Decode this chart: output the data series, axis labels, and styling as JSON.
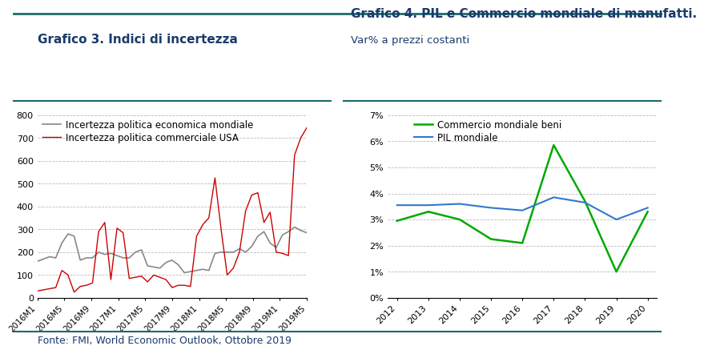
{
  "title1": "Grafico 3. Indici di incertezza",
  "title2": "Grafico 4. PIL e Commercio mondiale di manufatti.",
  "subtitle2": "Var% a prezzi costanti",
  "footer": "Fonte: FMI, World Economic Outlook, Ottobre 2019",
  "chart1": {
    "legend1": "Incertezza politica economica mondiale",
    "legend2": "Incertezza politica commerciale USA",
    "color_grey": "#888888",
    "color_red": "#cc0000",
    "xticks": [
      "2016M1",
      "2016M5",
      "2016M9",
      "2017M1",
      "2017M5",
      "2017M9",
      "2018M1",
      "2018M5",
      "2018M9",
      "2019M1",
      "2019M5"
    ],
    "ylim": [
      0,
      800
    ],
    "yticks": [
      0,
      100,
      200,
      300,
      400,
      500,
      600,
      700,
      800
    ],
    "grey_data": [
      160,
      170,
      180,
      175,
      240,
      280,
      270,
      165,
      175,
      175,
      200,
      190,
      195,
      185,
      175,
      175,
      200,
      210,
      140,
      135,
      130,
      155,
      165,
      145,
      110,
      115,
      120,
      125,
      120,
      195,
      200,
      200,
      200,
      215,
      200,
      225,
      270,
      290,
      240,
      220,
      275,
      290,
      310,
      295,
      285
    ],
    "red_data": [
      30,
      35,
      40,
      45,
      120,
      100,
      25,
      50,
      55,
      65,
      290,
      330,
      80,
      305,
      285,
      85,
      90,
      95,
      70,
      100,
      90,
      80,
      45,
      55,
      55,
      50,
      270,
      320,
      350,
      525,
      300,
      100,
      130,
      200,
      380,
      450,
      460,
      330,
      375,
      200,
      195,
      185,
      625,
      700,
      745
    ]
  },
  "chart2": {
    "legend1": "Commercio mondiale beni",
    "legend2": "PIL mondiale",
    "color_green": "#00aa00",
    "color_blue": "#3377cc",
    "years": [
      2012,
      2013,
      2014,
      2015,
      2016,
      2017,
      2018,
      2019,
      2020
    ],
    "commerce_data": [
      2.95,
      3.3,
      3.0,
      2.25,
      2.1,
      5.85,
      3.7,
      1.0,
      3.3
    ],
    "pil_data": [
      3.55,
      3.55,
      3.6,
      3.45,
      3.35,
      3.85,
      3.65,
      3.0,
      3.45
    ],
    "ylim": [
      0,
      7
    ],
    "ytick_vals": [
      0,
      1,
      2,
      3,
      4,
      5,
      6,
      7
    ],
    "ytick_labels": [
      "0%",
      "1%",
      "2%",
      "3%",
      "4%",
      "5%",
      "6%",
      "7%"
    ]
  },
  "title_color": "#1a3a6b",
  "title_fontsize": 11,
  "subtitle_fontsize": 9.5,
  "tick_fontsize": 8,
  "legend_fontsize": 8.5,
  "footer_color": "#1a3a6b",
  "footer_fontsize": 9,
  "bg_color": "#ffffff",
  "header_line_color": "#1a6b6b",
  "footer_line_color": "#1a6b6b"
}
